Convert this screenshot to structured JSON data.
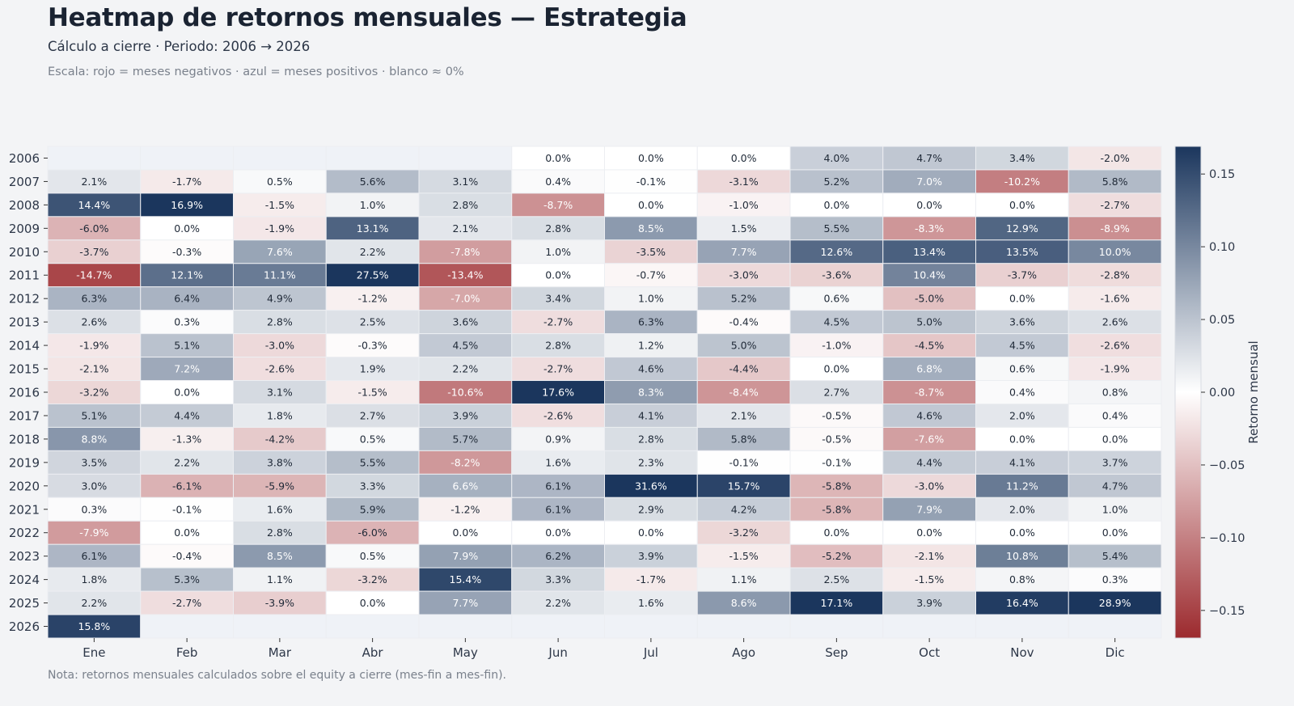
{
  "header": {
    "title": "Heatmap de retornos mensuales — Estrategia",
    "subtitle": "Cálculo a cierre · Periodo: 2006 → 2026",
    "scale_note": "Escala: rojo = meses negativos · azul = meses positivos · blanco ≈ 0%"
  },
  "footer": {
    "note": "Nota: retornos mensuales calculados sobre el equity a cierre (mes-fin a mes-fin)."
  },
  "chart_data": {
    "type": "heatmap",
    "title": "Heatmap de retornos mensuales — Estrategia",
    "xlabel": "",
    "ylabel": "",
    "x_categories": [
      "Ene",
      "Feb",
      "Mar",
      "Abr",
      "May",
      "Jun",
      "Jul",
      "Ago",
      "Sep",
      "Oct",
      "Nov",
      "Dic"
    ],
    "y_categories": [
      "2006",
      "2007",
      "2008",
      "2009",
      "2010",
      "2011",
      "2012",
      "2013",
      "2014",
      "2015",
      "2016",
      "2017",
      "2018",
      "2019",
      "2020",
      "2021",
      "2022",
      "2023",
      "2024",
      "2025",
      "2026"
    ],
    "value_unit": "%",
    "values": [
      [
        null,
        null,
        null,
        null,
        null,
        0.0,
        0.0,
        0.0,
        4.0,
        4.7,
        3.4,
        -2.0
      ],
      [
        2.1,
        -1.7,
        0.5,
        5.6,
        3.1,
        0.4,
        -0.1,
        -3.1,
        5.2,
        7.0,
        -10.2,
        5.8
      ],
      [
        14.4,
        16.9,
        -1.5,
        1.0,
        2.8,
        -8.7,
        0.0,
        -1.0,
        0.0,
        0.0,
        0.0,
        -2.7
      ],
      [
        -6.0,
        0.0,
        -1.9,
        13.1,
        2.1,
        2.8,
        8.5,
        1.5,
        5.5,
        -8.3,
        12.9,
        -8.9
      ],
      [
        -3.7,
        -0.3,
        7.6,
        2.2,
        -7.8,
        1.0,
        -3.5,
        7.7,
        12.6,
        13.4,
        13.5,
        10.0
      ],
      [
        -14.7,
        12.1,
        11.1,
        27.5,
        -13.4,
        0.0,
        -0.7,
        -3.0,
        -3.6,
        10.4,
        -3.7,
        -2.8
      ],
      [
        6.3,
        6.4,
        4.9,
        -1.2,
        -7.0,
        3.4,
        1.0,
        5.2,
        0.6,
        -5.0,
        0.0,
        -1.6
      ],
      [
        2.6,
        0.3,
        2.8,
        2.5,
        3.6,
        -2.7,
        6.3,
        -0.4,
        4.5,
        5.0,
        3.6,
        2.6
      ],
      [
        -1.9,
        5.1,
        -3.0,
        -0.3,
        4.5,
        2.8,
        1.2,
        5.0,
        -1.0,
        -4.5,
        4.5,
        -2.6
      ],
      [
        -2.1,
        7.2,
        -2.6,
        1.9,
        2.2,
        -2.7,
        4.6,
        -4.4,
        0.0,
        6.8,
        0.6,
        -1.9
      ],
      [
        -3.2,
        0.0,
        3.1,
        -1.5,
        -10.6,
        17.6,
        8.3,
        -8.4,
        2.7,
        -8.7,
        0.4,
        0.8
      ],
      [
        5.1,
        4.4,
        1.8,
        2.7,
        3.9,
        -2.6,
        4.1,
        2.1,
        -0.5,
        4.6,
        2.0,
        0.4
      ],
      [
        8.8,
        -1.3,
        -4.2,
        0.5,
        5.7,
        0.9,
        2.8,
        5.8,
        -0.5,
        -7.6,
        0.0,
        0.0
      ],
      [
        3.5,
        2.2,
        3.8,
        5.5,
        -8.2,
        1.6,
        2.3,
        -0.1,
        -0.1,
        4.4,
        4.1,
        3.7
      ],
      [
        3.0,
        -6.1,
        -5.9,
        3.3,
        6.6,
        6.1,
        31.6,
        15.7,
        -5.8,
        -3.0,
        11.2,
        4.7
      ],
      [
        0.3,
        -0.1,
        1.6,
        5.9,
        -1.2,
        6.1,
        2.9,
        4.2,
        -5.8,
        7.9,
        2.0,
        1.0
      ],
      [
        -7.9,
        0.0,
        2.8,
        -6.0,
        0.0,
        0.0,
        0.0,
        -3.2,
        0.0,
        0.0,
        0.0,
        0.0
      ],
      [
        6.1,
        -0.4,
        8.5,
        0.5,
        7.9,
        6.2,
        3.9,
        -1.5,
        -5.2,
        -2.1,
        10.8,
        5.4
      ],
      [
        1.8,
        5.3,
        1.1,
        -3.2,
        15.4,
        3.3,
        -1.7,
        1.1,
        2.5,
        -1.5,
        0.8,
        0.3
      ],
      [
        2.2,
        -2.7,
        -3.9,
        0.0,
        7.7,
        2.2,
        1.6,
        8.6,
        17.1,
        3.9,
        16.4,
        28.9
      ],
      [
        15.8,
        null,
        null,
        null,
        null,
        null,
        null,
        null,
        null,
        null,
        null,
        null
      ]
    ],
    "colorbar": {
      "label": "Retorno mensual",
      "range": [
        -0.169,
        0.169
      ],
      "ticks": [
        0.15,
        0.1,
        0.05,
        0.0,
        -0.05,
        -0.1,
        -0.15
      ],
      "tick_labels": [
        "0.15",
        "0.10",
        "0.05",
        "0.00",
        "−0.05",
        "−0.10",
        "−0.15"
      ],
      "placement": "right"
    },
    "colors": {
      "negative": "#9c2a2e",
      "zero": "#ffffff",
      "positive": "#1b365d",
      "missing": "#eff2f7"
    }
  }
}
